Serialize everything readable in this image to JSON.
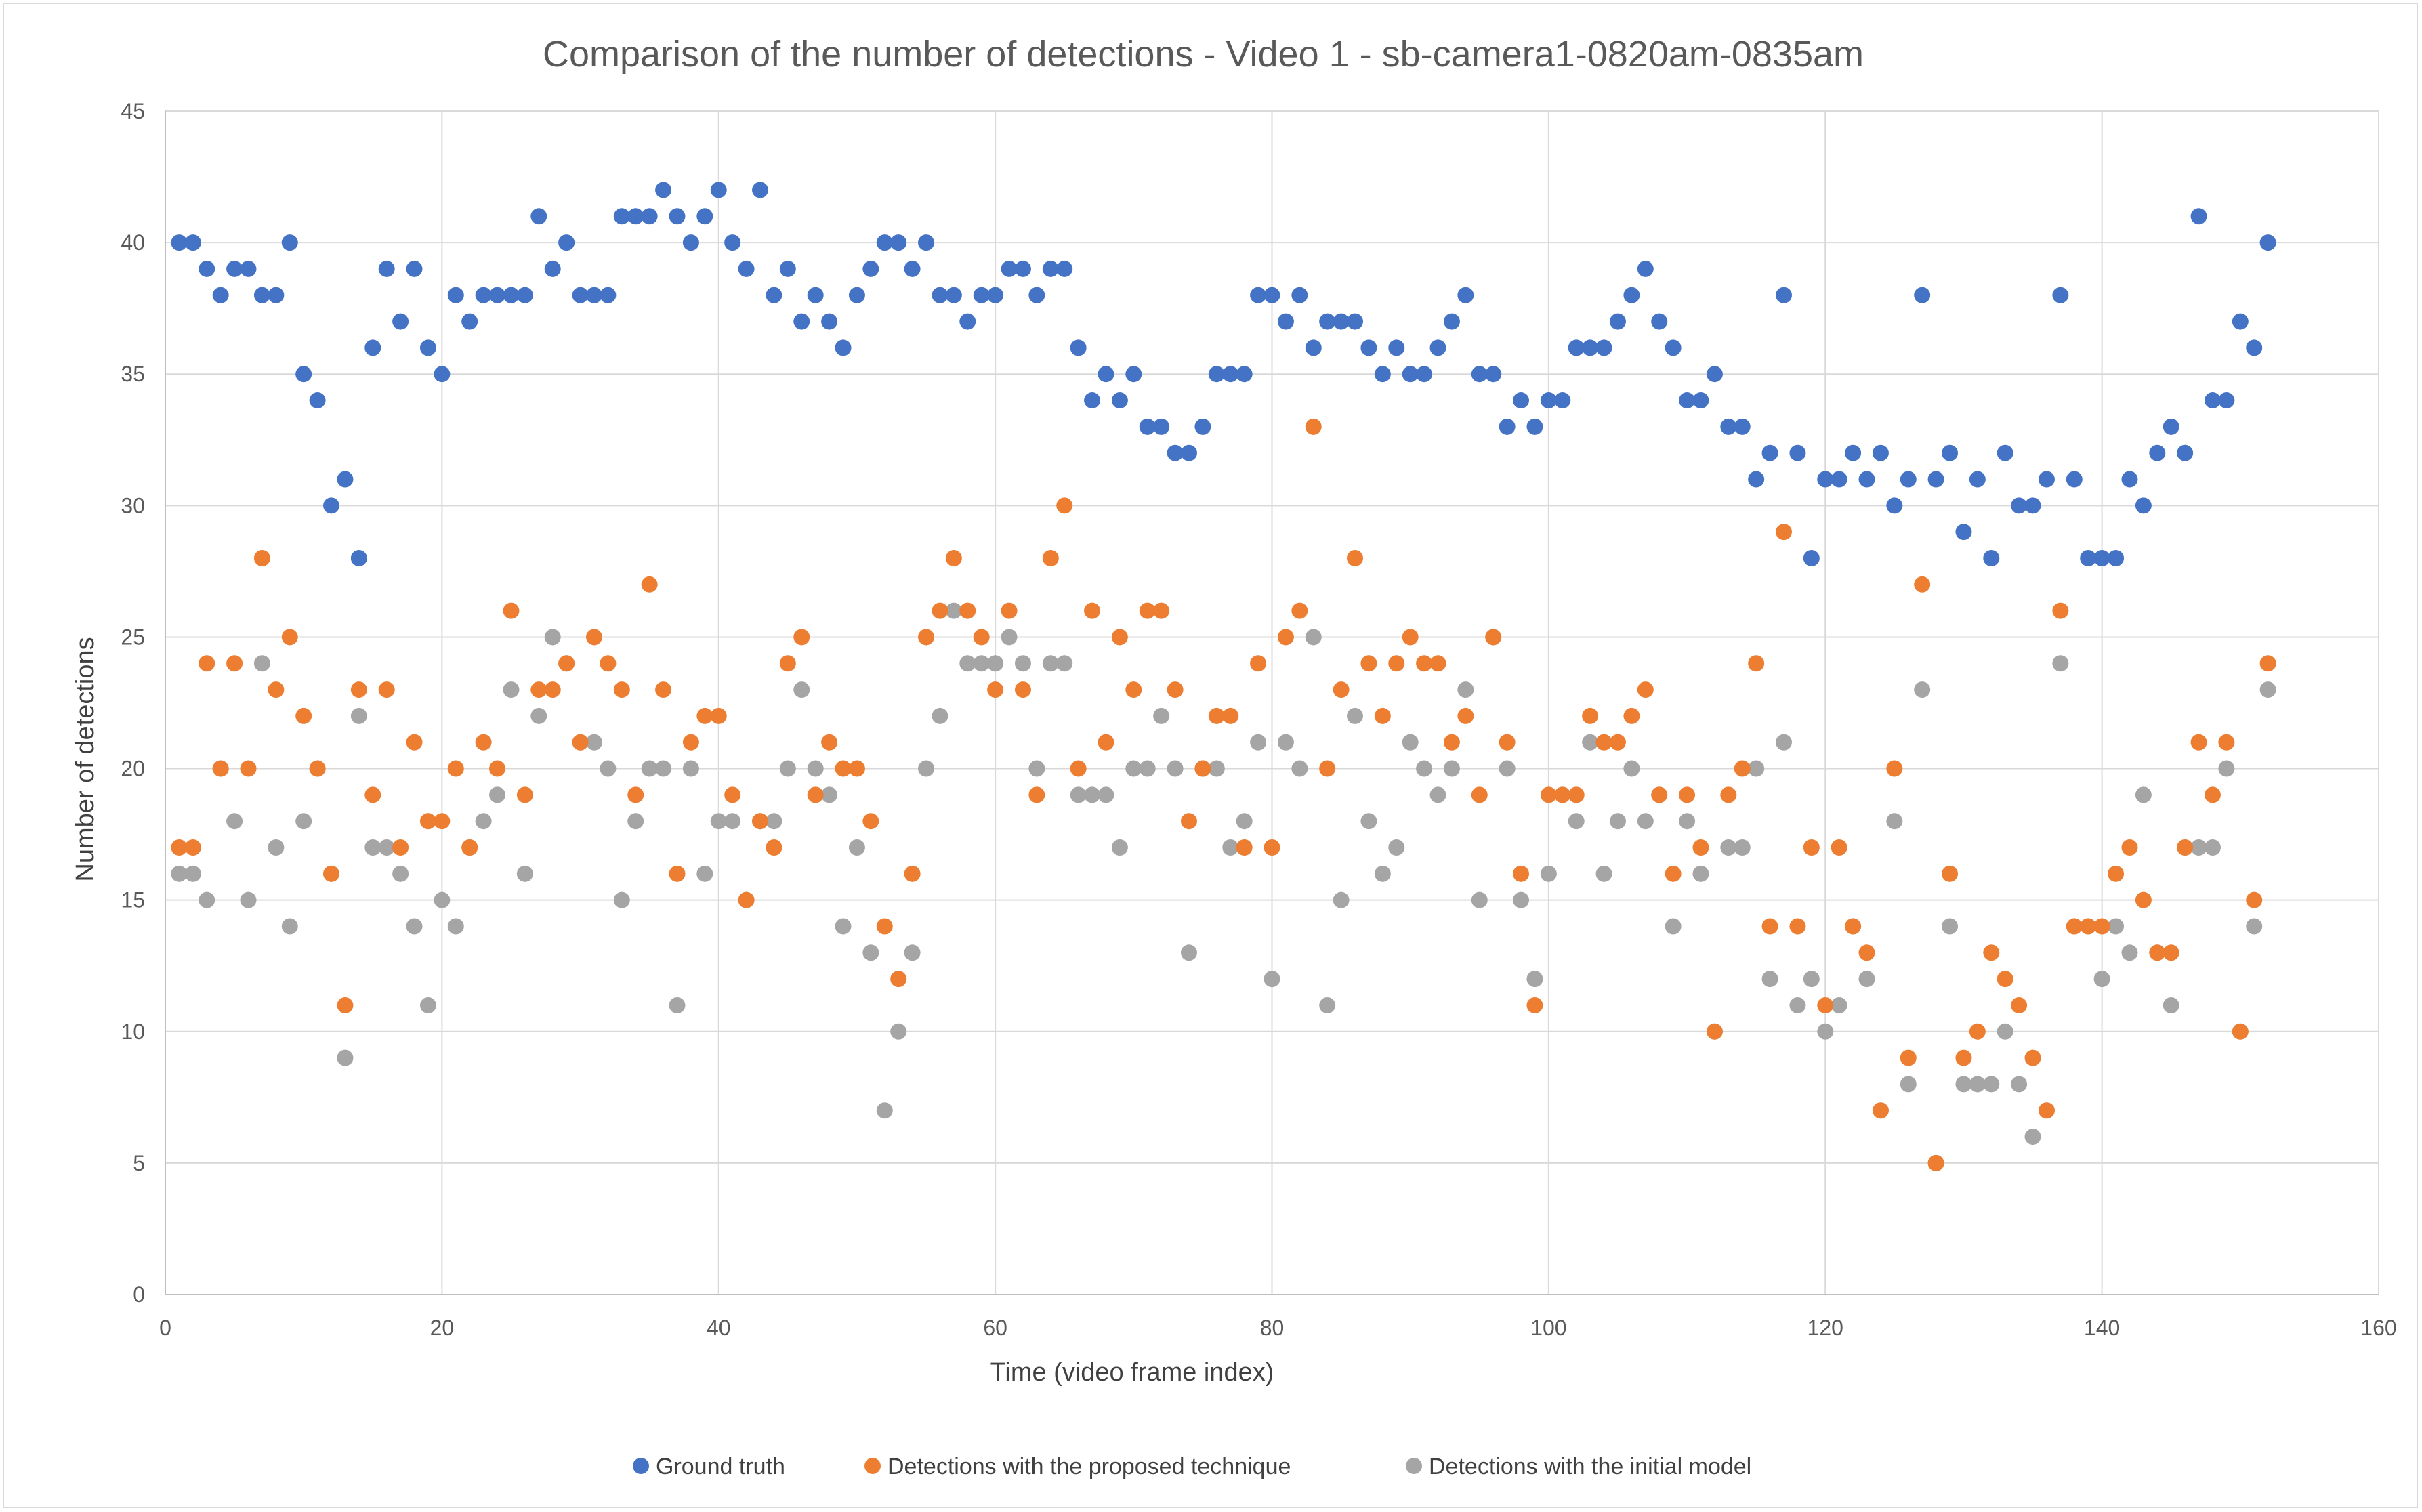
{
  "chart_data": {
    "type": "scatter",
    "title": "Comparison of the number of detections - Video 1 - sb-camera1-0820am-0835am",
    "xlabel": "Time (video frame index)",
    "ylabel": "Number of detections",
    "xlim": [
      0,
      160
    ],
    "ylim": [
      0,
      45
    ],
    "xticks": [
      0,
      20,
      40,
      60,
      80,
      100,
      120,
      140,
      160
    ],
    "yticks": [
      0,
      5,
      10,
      15,
      20,
      25,
      30,
      35,
      40,
      45
    ],
    "grid": true,
    "legend_position": "bottom",
    "x": [
      1,
      2,
      3,
      4,
      5,
      6,
      7,
      8,
      9,
      10,
      11,
      12,
      13,
      14,
      15,
      16,
      17,
      18,
      19,
      20,
      21,
      22,
      23,
      24,
      25,
      26,
      27,
      28,
      29,
      30,
      31,
      32,
      33,
      34,
      35,
      36,
      37,
      38,
      39,
      40,
      41,
      42,
      43,
      44,
      45,
      46,
      47,
      48,
      49,
      50,
      51,
      52,
      53,
      54,
      55,
      56,
      57,
      58,
      59,
      60,
      61,
      62,
      63,
      64,
      65,
      66,
      67,
      68,
      69,
      70,
      71,
      72,
      73,
      74,
      75,
      76,
      77,
      78,
      79,
      80,
      81,
      82,
      83,
      84,
      85,
      86,
      87,
      88,
      89,
      90,
      91,
      92,
      93,
      94,
      95,
      96,
      97,
      98,
      99,
      100,
      101,
      102,
      103,
      104,
      105,
      106,
      107,
      108,
      109,
      110,
      111,
      112,
      113,
      114,
      115,
      116,
      117,
      118,
      119,
      120,
      121,
      122,
      123,
      124,
      125,
      126,
      127,
      128,
      129,
      130,
      131,
      132,
      133,
      134,
      135,
      136,
      137,
      138,
      139,
      140,
      141,
      142,
      143,
      144,
      145,
      146,
      147,
      148,
      149,
      150,
      151,
      152
    ],
    "series": [
      {
        "name": "Ground truth",
        "color": "#4472C4",
        "values": [
          40,
          40,
          39,
          38,
          39,
          39,
          38,
          38,
          40,
          35,
          34,
          30,
          31,
          28,
          36,
          39,
          37,
          39,
          36,
          35,
          38,
          37,
          38,
          38,
          38,
          38,
          41,
          39,
          40,
          38,
          38,
          38,
          41,
          41,
          41,
          42,
          41,
          40,
          41,
          42,
          40,
          39,
          42,
          38,
          39,
          37,
          38,
          37,
          36,
          38,
          39,
          40,
          40,
          39,
          40,
          38,
          38,
          37,
          38,
          38,
          39,
          39,
          38,
          39,
          39,
          36,
          34,
          35,
          34,
          35,
          33,
          33,
          32,
          32,
          33,
          35,
          35,
          35,
          38,
          38,
          37,
          38,
          36,
          37,
          37,
          37,
          36,
          35,
          36,
          35,
          35,
          36,
          37,
          38,
          35,
          35,
          33,
          34,
          33,
          34,
          34,
          36,
          36,
          36,
          37,
          38,
          39,
          37,
          36,
          34,
          34,
          35,
          33,
          33,
          31,
          32,
          38,
          32,
          28,
          31,
          31,
          32,
          31,
          32,
          30,
          31,
          38,
          31,
          32,
          29,
          31,
          28,
          32,
          30,
          30,
          31,
          38,
          31,
          28,
          28,
          28,
          31,
          30,
          32,
          33,
          32,
          41,
          34,
          34,
          37,
          36,
          40
        ]
      },
      {
        "name": "Detections with the proposed technique",
        "color": "#ED7D31",
        "values": [
          17,
          17,
          24,
          20,
          24,
          20,
          28,
          23,
          25,
          22,
          20,
          16,
          11,
          23,
          19,
          23,
          17,
          21,
          18,
          18,
          20,
          17,
          21,
          20,
          26,
          19,
          23,
          23,
          24,
          21,
          25,
          24,
          23,
          19,
          27,
          23,
          16,
          21,
          22,
          22,
          19,
          15,
          18,
          17,
          24,
          25,
          19,
          21,
          20,
          20,
          18,
          14,
          12,
          16,
          25,
          26,
          28,
          26,
          25,
          23,
          26,
          23,
          19,
          28,
          30,
          20,
          26,
          21,
          25,
          23,
          26,
          26,
          23,
          18,
          20,
          22,
          22,
          17,
          24,
          17,
          25,
          26,
          33,
          20,
          23,
          28,
          24,
          22,
          24,
          25,
          24,
          24,
          21,
          22,
          19,
          25,
          21,
          16,
          11,
          19,
          19,
          19,
          22,
          21,
          21,
          22,
          23,
          19,
          16,
          19,
          17,
          10,
          19,
          20,
          24,
          14,
          29,
          14,
          17,
          11,
          17,
          14,
          13,
          7,
          20,
          9,
          27,
          5,
          16,
          9,
          10,
          13,
          12,
          11,
          9,
          7,
          26,
          14,
          14,
          14,
          16,
          17,
          15,
          13,
          13,
          17,
          21,
          19,
          21,
          10,
          15,
          24
        ]
      },
      {
        "name": "Detections with the initial model",
        "color": "#A5A5A5",
        "values": [
          16,
          16,
          15,
          20,
          18,
          15,
          24,
          17,
          14,
          18,
          20,
          16,
          9,
          22,
          17,
          17,
          16,
          14,
          11,
          15,
          14,
          17,
          18,
          19,
          23,
          16,
          22,
          25,
          24,
          21,
          21,
          20,
          15,
          18,
          20,
          20,
          11,
          20,
          16,
          18,
          18,
          15,
          18,
          18,
          20,
          23,
          20,
          19,
          14,
          17,
          13,
          7,
          10,
          13,
          20,
          22,
          26,
          24,
          24,
          24,
          25,
          24,
          20,
          24,
          24,
          19,
          19,
          19,
          17,
          20,
          20,
          22,
          20,
          13,
          20,
          20,
          17,
          18,
          21,
          12,
          21,
          20,
          25,
          11,
          15,
          22,
          18,
          16,
          17,
          21,
          20,
          19,
          20,
          23,
          15,
          25,
          20,
          15,
          12,
          16,
          19,
          18,
          21,
          16,
          18,
          20,
          18,
          19,
          14,
          18,
          16,
          10,
          17,
          17,
          20,
          12,
          21,
          11,
          12,
          10,
          11,
          14,
          12,
          7,
          18,
          8,
          23,
          5,
          14,
          8,
          8,
          8,
          10,
          8,
          6,
          7,
          24,
          14,
          14,
          12,
          14,
          13,
          19,
          13,
          11,
          17,
          17,
          17,
          20,
          10,
          14,
          23
        ]
      }
    ]
  }
}
